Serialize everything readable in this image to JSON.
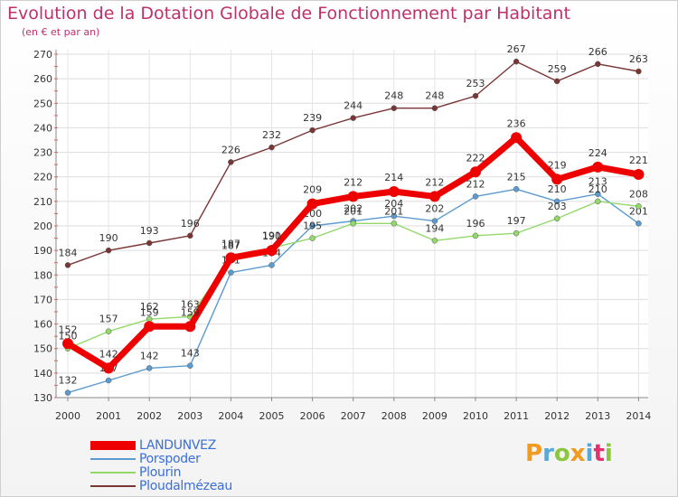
{
  "title": "Evolution de la Dotation Globale de Fonctionnement par Habitant",
  "subtitle": "(en € et par an)",
  "logo": {
    "letters": [
      "P",
      "r",
      "o",
      "x",
      "i",
      "t",
      "i"
    ],
    "colors": [
      "#f29a1f",
      "#58a8d8",
      "#8cc63e",
      "#f29a1f",
      "#58a8d8",
      "#e5306b",
      "#8cc63e"
    ]
  },
  "chart_data": {
    "type": "line",
    "title": "Evolution de la Dotation Globale de Fonctionnement par Habitant",
    "subtitle": "(en € et par an)",
    "xlabel": "",
    "ylabel": "",
    "ylim": [
      130,
      270
    ],
    "yticks": [
      130,
      140,
      150,
      160,
      170,
      180,
      190,
      200,
      210,
      220,
      230,
      240,
      250,
      260,
      270
    ],
    "grid": true,
    "legend": "bottom-left",
    "categories": [
      "2000",
      "2001",
      "2002",
      "2003",
      "2004",
      "2005",
      "2006",
      "2007",
      "2008",
      "2009",
      "2010",
      "2011",
      "2012",
      "2013",
      "2014"
    ],
    "series": [
      {
        "name": "Ploudalmézeau",
        "color": "#7a3535",
        "values": [
          184,
          190,
          193,
          196,
          226,
          232,
          239,
          244,
          248,
          248,
          253,
          267,
          259,
          266,
          263
        ]
      },
      {
        "name": "Porspoder",
        "color": "#5c9bd0",
        "values": [
          132,
          137,
          142,
          143,
          181,
          184,
          200,
          202,
          204,
          202,
          212,
          215,
          210,
          213,
          201
        ]
      },
      {
        "name": "Plourin",
        "color": "#93d96a",
        "values": [
          150,
          157,
          162,
          163,
          187,
          191,
          195,
          201,
          201,
          194,
          196,
          197,
          203,
          210,
          208
        ]
      },
      {
        "name": "LANDUNVEZ",
        "color": "#ee0000",
        "values": [
          152,
          142,
          159,
          159,
          187,
          190,
          209,
          212,
          214,
          212,
          222,
          236,
          219,
          224,
          221
        ]
      }
    ]
  }
}
